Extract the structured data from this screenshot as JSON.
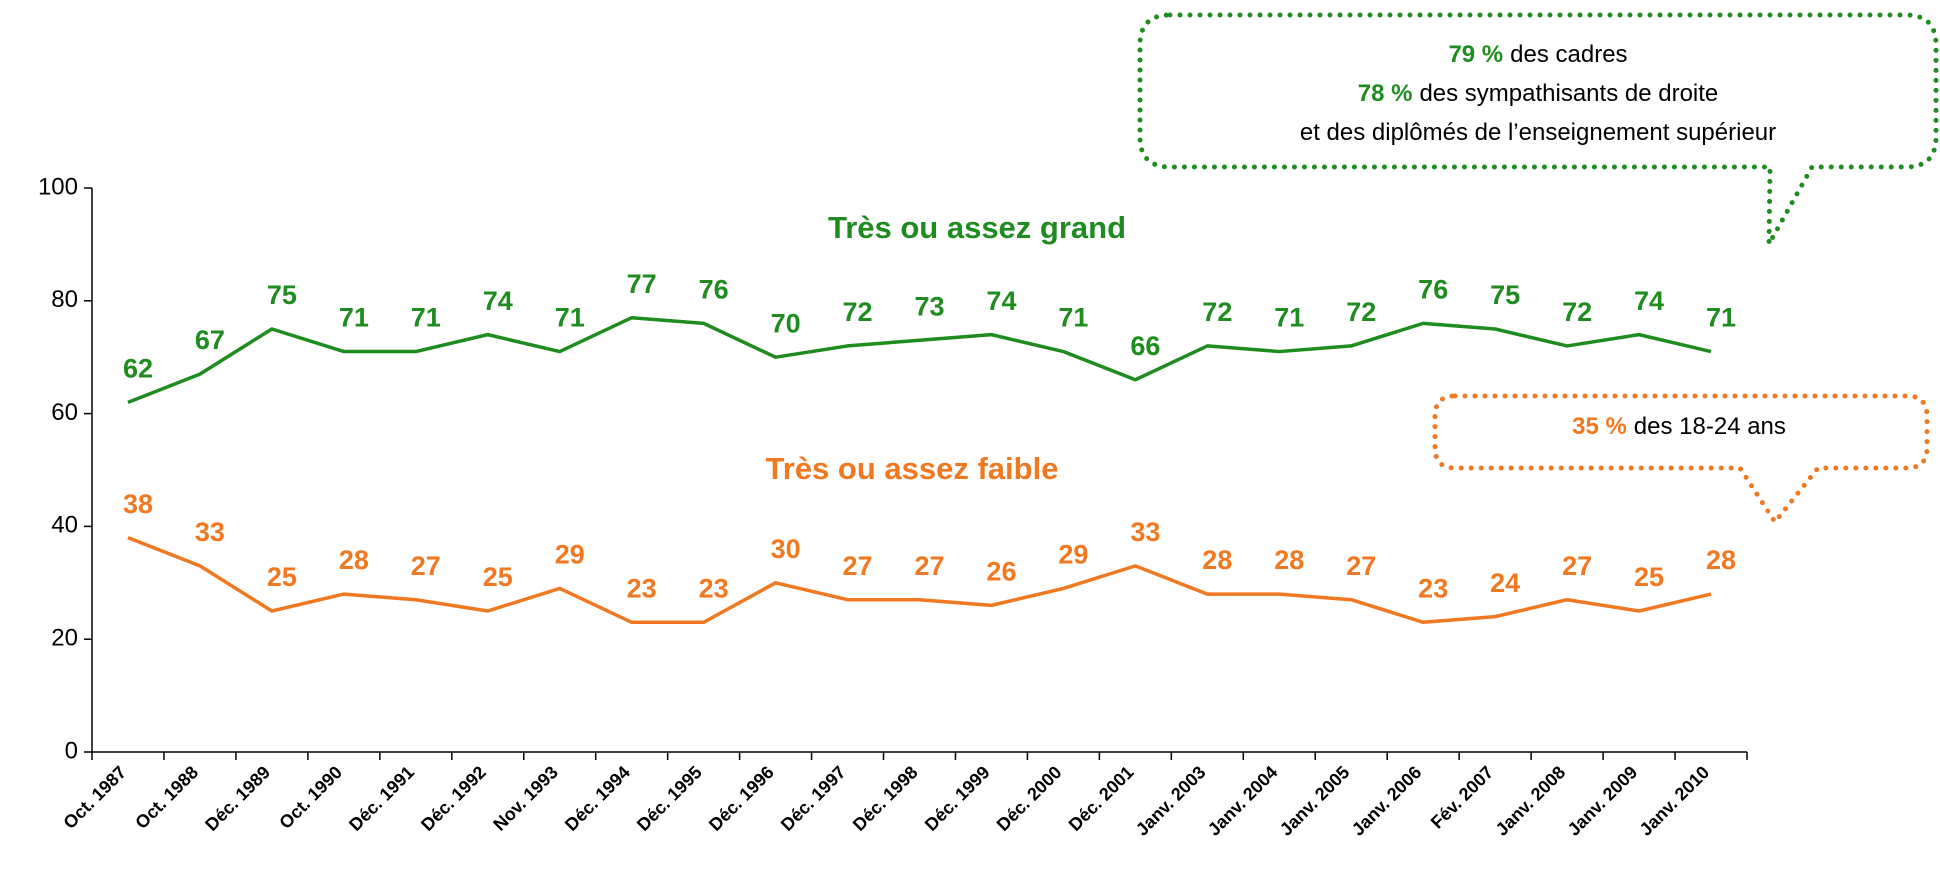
{
  "chart_data": {
    "type": "line",
    "categories": [
      "Oct. 1987",
      "Oct. 1988",
      "Déc. 1989",
      "Oct. 1990",
      "Déc. 1991",
      "Déc. 1992",
      "Nov. 1993",
      "Déc. 1994",
      "Déc. 1995",
      "Déc. 1996",
      "Déc. 1997",
      "Déc. 1998",
      "Déc. 1999",
      "Déc. 2000",
      "Déc. 2001",
      "Janv. 2003",
      "Janv. 2004",
      "Janv. 2005",
      "Janv. 2006",
      "Fév. 2007",
      "Janv. 2008",
      "Janv. 2009",
      "Janv. 2010"
    ],
    "series": [
      {
        "name": "Très ou assez grand",
        "color": "#1e8c1e",
        "values": [
          62,
          67,
          75,
          71,
          71,
          74,
          71,
          77,
          76,
          70,
          72,
          73,
          74,
          71,
          66,
          72,
          71,
          72,
          76,
          75,
          72,
          74,
          71
        ]
      },
      {
        "name": "Très ou assez faible",
        "color": "#f07820",
        "values": [
          38,
          33,
          25,
          28,
          27,
          25,
          29,
          23,
          23,
          30,
          27,
          27,
          26,
          29,
          33,
          28,
          28,
          27,
          23,
          24,
          27,
          25,
          28
        ]
      }
    ],
    "ylim": [
      0,
      100
    ],
    "yticks": [
      0,
      20,
      40,
      60,
      80,
      100
    ],
    "annotations": [
      {
        "lines": [
          {
            "highlight": "79 %",
            "text": "des cadres"
          },
          {
            "highlight": "78 %",
            "text": "des sympathisants de droite"
          },
          {
            "text": "et des diplômés de l’enseignement supérieur"
          }
        ],
        "color": "#1e8c1e"
      },
      {
        "lines": [
          {
            "highlight": "35 %",
            "text": "des 18-24 ans"
          }
        ],
        "color": "#f07820"
      }
    ]
  }
}
